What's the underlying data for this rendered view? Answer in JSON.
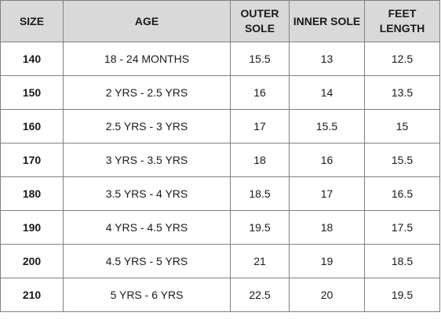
{
  "headers": {
    "size": "SIZE",
    "age": "AGE",
    "outer_sole": [
      "OUTER",
      "SOLE"
    ],
    "inner_sole": "INNER SOLE",
    "feet_length": [
      "FEET",
      "LENGTH"
    ]
  },
  "rows": [
    {
      "size": "140",
      "age": "18 - 24 MONTHS",
      "outer_sole": "15.5",
      "inner_sole": "13",
      "feet_length": "12.5"
    },
    {
      "size": "150",
      "age": "2 YRS - 2.5 YRS",
      "outer_sole": "16",
      "inner_sole": "14",
      "feet_length": "13.5"
    },
    {
      "size": "160",
      "age": "2.5 YRS - 3 YRS",
      "outer_sole": "17",
      "inner_sole": "15.5",
      "feet_length": "15"
    },
    {
      "size": "170",
      "age": "3 YRS - 3.5 YRS",
      "outer_sole": "18",
      "inner_sole": "16",
      "feet_length": "15.5"
    },
    {
      "size": "180",
      "age": "3.5 YRS - 4 YRS",
      "outer_sole": "18.5",
      "inner_sole": "17",
      "feet_length": "16.5"
    },
    {
      "size": "190",
      "age": "4 YRS - 4.5 YRS",
      "outer_sole": "19.5",
      "inner_sole": "18",
      "feet_length": "17.5"
    },
    {
      "size": "200",
      "age": "4.5 YRS - 5 YRS",
      "outer_sole": "21",
      "inner_sole": "19",
      "feet_length": "18.5"
    },
    {
      "size": "210",
      "age": "5 YRS - 6 YRS",
      "outer_sole": "22.5",
      "inner_sole": "20",
      "feet_length": "19.5"
    }
  ],
  "colors": {
    "header_bg": "#d9d9d9",
    "border": "#808080",
    "text": "#1a1a1a"
  }
}
